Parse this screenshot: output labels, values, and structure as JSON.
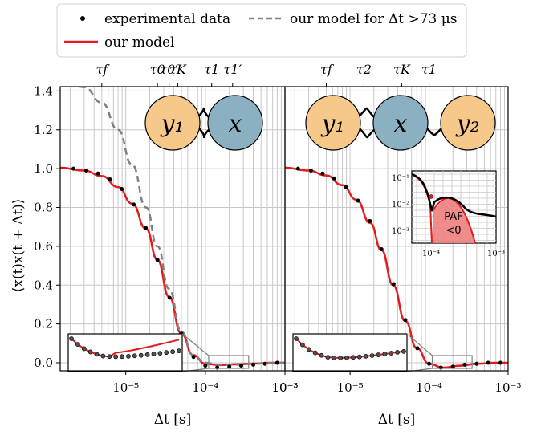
{
  "chart_data": {
    "type": "line",
    "ylabel": "⟨x(t)x(t + Δt)⟩",
    "ylim": [
      -0.05,
      1.5
    ],
    "yticks": [
      "0.0",
      "0.2",
      "0.4",
      "0.6",
      "0.8",
      "1.0",
      "1.2",
      "1.4"
    ],
    "yticks_values": [
      0,
      0.2,
      0.4,
      0.6,
      0.8,
      1.0,
      1.2,
      1.4
    ],
    "xscale": "log",
    "xlim": [
      "1.5e-6",
      "1e-3"
    ],
    "grid": true,
    "legend": {
      "position": "top",
      "items": [
        {
          "label": "experimental data",
          "style": "marker",
          "color": "#000000"
        },
        {
          "label": "our model for Δt >73 μs",
          "style": "dashed",
          "color": "#808080"
        },
        {
          "label": "our model",
          "style": "line",
          "color": "#e41a1c"
        }
      ]
    },
    "panels": [
      {
        "xlabel": "Δt [s]",
        "xticks": [
          "10⁻⁵",
          "10⁻⁴",
          "10⁻³"
        ],
        "top_ticks": [
          {
            "label": "τ_f",
            "x": 5e-06
          },
          {
            "label": "τ_0",
            "x": 2.5e-05
          },
          {
            "label": "τ_0′",
            "x": 3.5e-05
          },
          {
            "label": "τ_K",
            "x": 4.5e-05
          },
          {
            "label": "τ_1",
            "x": 0.00012
          },
          {
            "label": "τ_1′",
            "x": 0.00022
          }
        ],
        "network": {
          "nodes": [
            "y1",
            "x"
          ],
          "labels": [
            "y₁",
            "x"
          ],
          "node_colors": [
            "#f6c98a",
            "#8bb0c2"
          ]
        },
        "series": [
          {
            "name": "experimental data",
            "type": "scatter",
            "x": [
              2.2e-06,
              3.2e-06,
              4.5e-06,
              6.3e-06,
              8.9e-06,
              1.26e-05,
              1.78e-05,
              2.5e-05,
              3.55e-05,
              5e-05,
              7.1e-05,
              0.0001,
              0.000141,
              0.0002,
              0.000282,
              0.0004,
              0.00056,
              0.0008
            ],
            "y": [
              1.0,
              0.99,
              0.975,
              0.945,
              0.895,
              0.815,
              0.695,
              0.53,
              0.335,
              0.15,
              0.03,
              -0.015,
              -0.025,
              -0.02,
              -0.015,
              -0.01,
              -0.005,
              0.0
            ]
          },
          {
            "name": "our model",
            "type": "line",
            "color": "#e41a1c",
            "x": [
              1.5e-06,
              3e-06,
              5e-06,
              8e-06,
              1.2e-05,
              1.8e-05,
              2.5e-05,
              3.5e-05,
              5e-05,
              7e-05,
              0.0001,
              0.00015,
              0.00025,
              0.0004,
              0.0007,
              0.001
            ],
            "y": [
              1.005,
              0.99,
              0.962,
              0.905,
              0.82,
              0.69,
              0.53,
              0.34,
              0.15,
              0.04,
              -0.005,
              -0.012,
              -0.008,
              -0.004,
              0.0,
              0.0
            ]
          },
          {
            "name": "our model for Δt >73 μs",
            "type": "line",
            "dashed": true,
            "color": "#808080",
            "x": [
              1.5e-06,
              3e-06,
              5e-06,
              8e-06,
              1.2e-05,
              1.8e-05,
              2.5e-05,
              3.5e-05,
              5e-05,
              7e-05,
              0.0001,
              0.00015,
              0.00025,
              0.0004,
              0.0007,
              0.001
            ],
            "y": [
              1.46,
              1.42,
              1.34,
              1.2,
              1.02,
              0.8,
              0.6,
              0.38,
              0.16,
              0.04,
              0.0,
              -0.01,
              -0.01,
              -0.005,
              0.0,
              0.0
            ]
          }
        ]
      },
      {
        "xlabel": "Δt [s]",
        "xticks": [
          "10⁻³",
          "10⁻⁵",
          "10⁻⁴",
          "10⁻³"
        ],
        "top_ticks": [
          {
            "label": "τ_f",
            "x": 5e-06
          },
          {
            "label": "τ_2",
            "x": 1.5e-05
          },
          {
            "label": "τ_K",
            "x": 4.5e-05
          },
          {
            "label": "τ_1",
            "x": 0.0001
          }
        ],
        "network": {
          "nodes": [
            "y1",
            "x",
            "y2"
          ],
          "labels": [
            "y₁",
            "x",
            "y₂"
          ],
          "node_colors": [
            "#f6c98a",
            "#8bb0c2",
            "#f6c98a"
          ]
        },
        "series": [
          {
            "name": "experimental data",
            "type": "scatter",
            "x": [
              2.2e-06,
              3.2e-06,
              4.5e-06,
              6.3e-06,
              8.9e-06,
              1.26e-05,
              1.78e-05,
              2.5e-05,
              3.55e-05,
              5e-05,
              7.1e-05,
              0.0001,
              0.000141,
              0.0002,
              0.000282,
              0.0004,
              0.00056,
              0.0008
            ],
            "y": [
              1.0,
              0.99,
              0.975,
              0.95,
              0.905,
              0.835,
              0.73,
              0.585,
              0.405,
              0.22,
              0.075,
              -0.005,
              -0.025,
              -0.02,
              -0.01,
              -0.005,
              0.0,
              0.0
            ]
          },
          {
            "name": "our model",
            "type": "line",
            "color": "#e41a1c",
            "x": [
              1.5e-06,
              3e-06,
              5e-06,
              8e-06,
              1.2e-05,
              1.8e-05,
              2.5e-05,
              3.5e-05,
              5e-05,
              7e-05,
              0.0001,
              0.00015,
              0.00025,
              0.0004,
              0.0007,
              0.001
            ],
            "y": [
              1.005,
              0.99,
              0.965,
              0.915,
              0.84,
              0.72,
              0.58,
              0.4,
              0.215,
              0.075,
              -0.005,
              -0.025,
              -0.015,
              -0.005,
              0.0,
              0.0
            ]
          }
        ],
        "inset": {
          "xscale": "log",
          "yscale": "log",
          "xticks": [
            "10⁻⁴",
            "10⁻³"
          ],
          "yticks": [
            "10⁻¹",
            "10⁻²",
            "10⁻³"
          ],
          "annotation": "PAF\n<0",
          "fill_color": "#f08080"
        }
      }
    ]
  }
}
